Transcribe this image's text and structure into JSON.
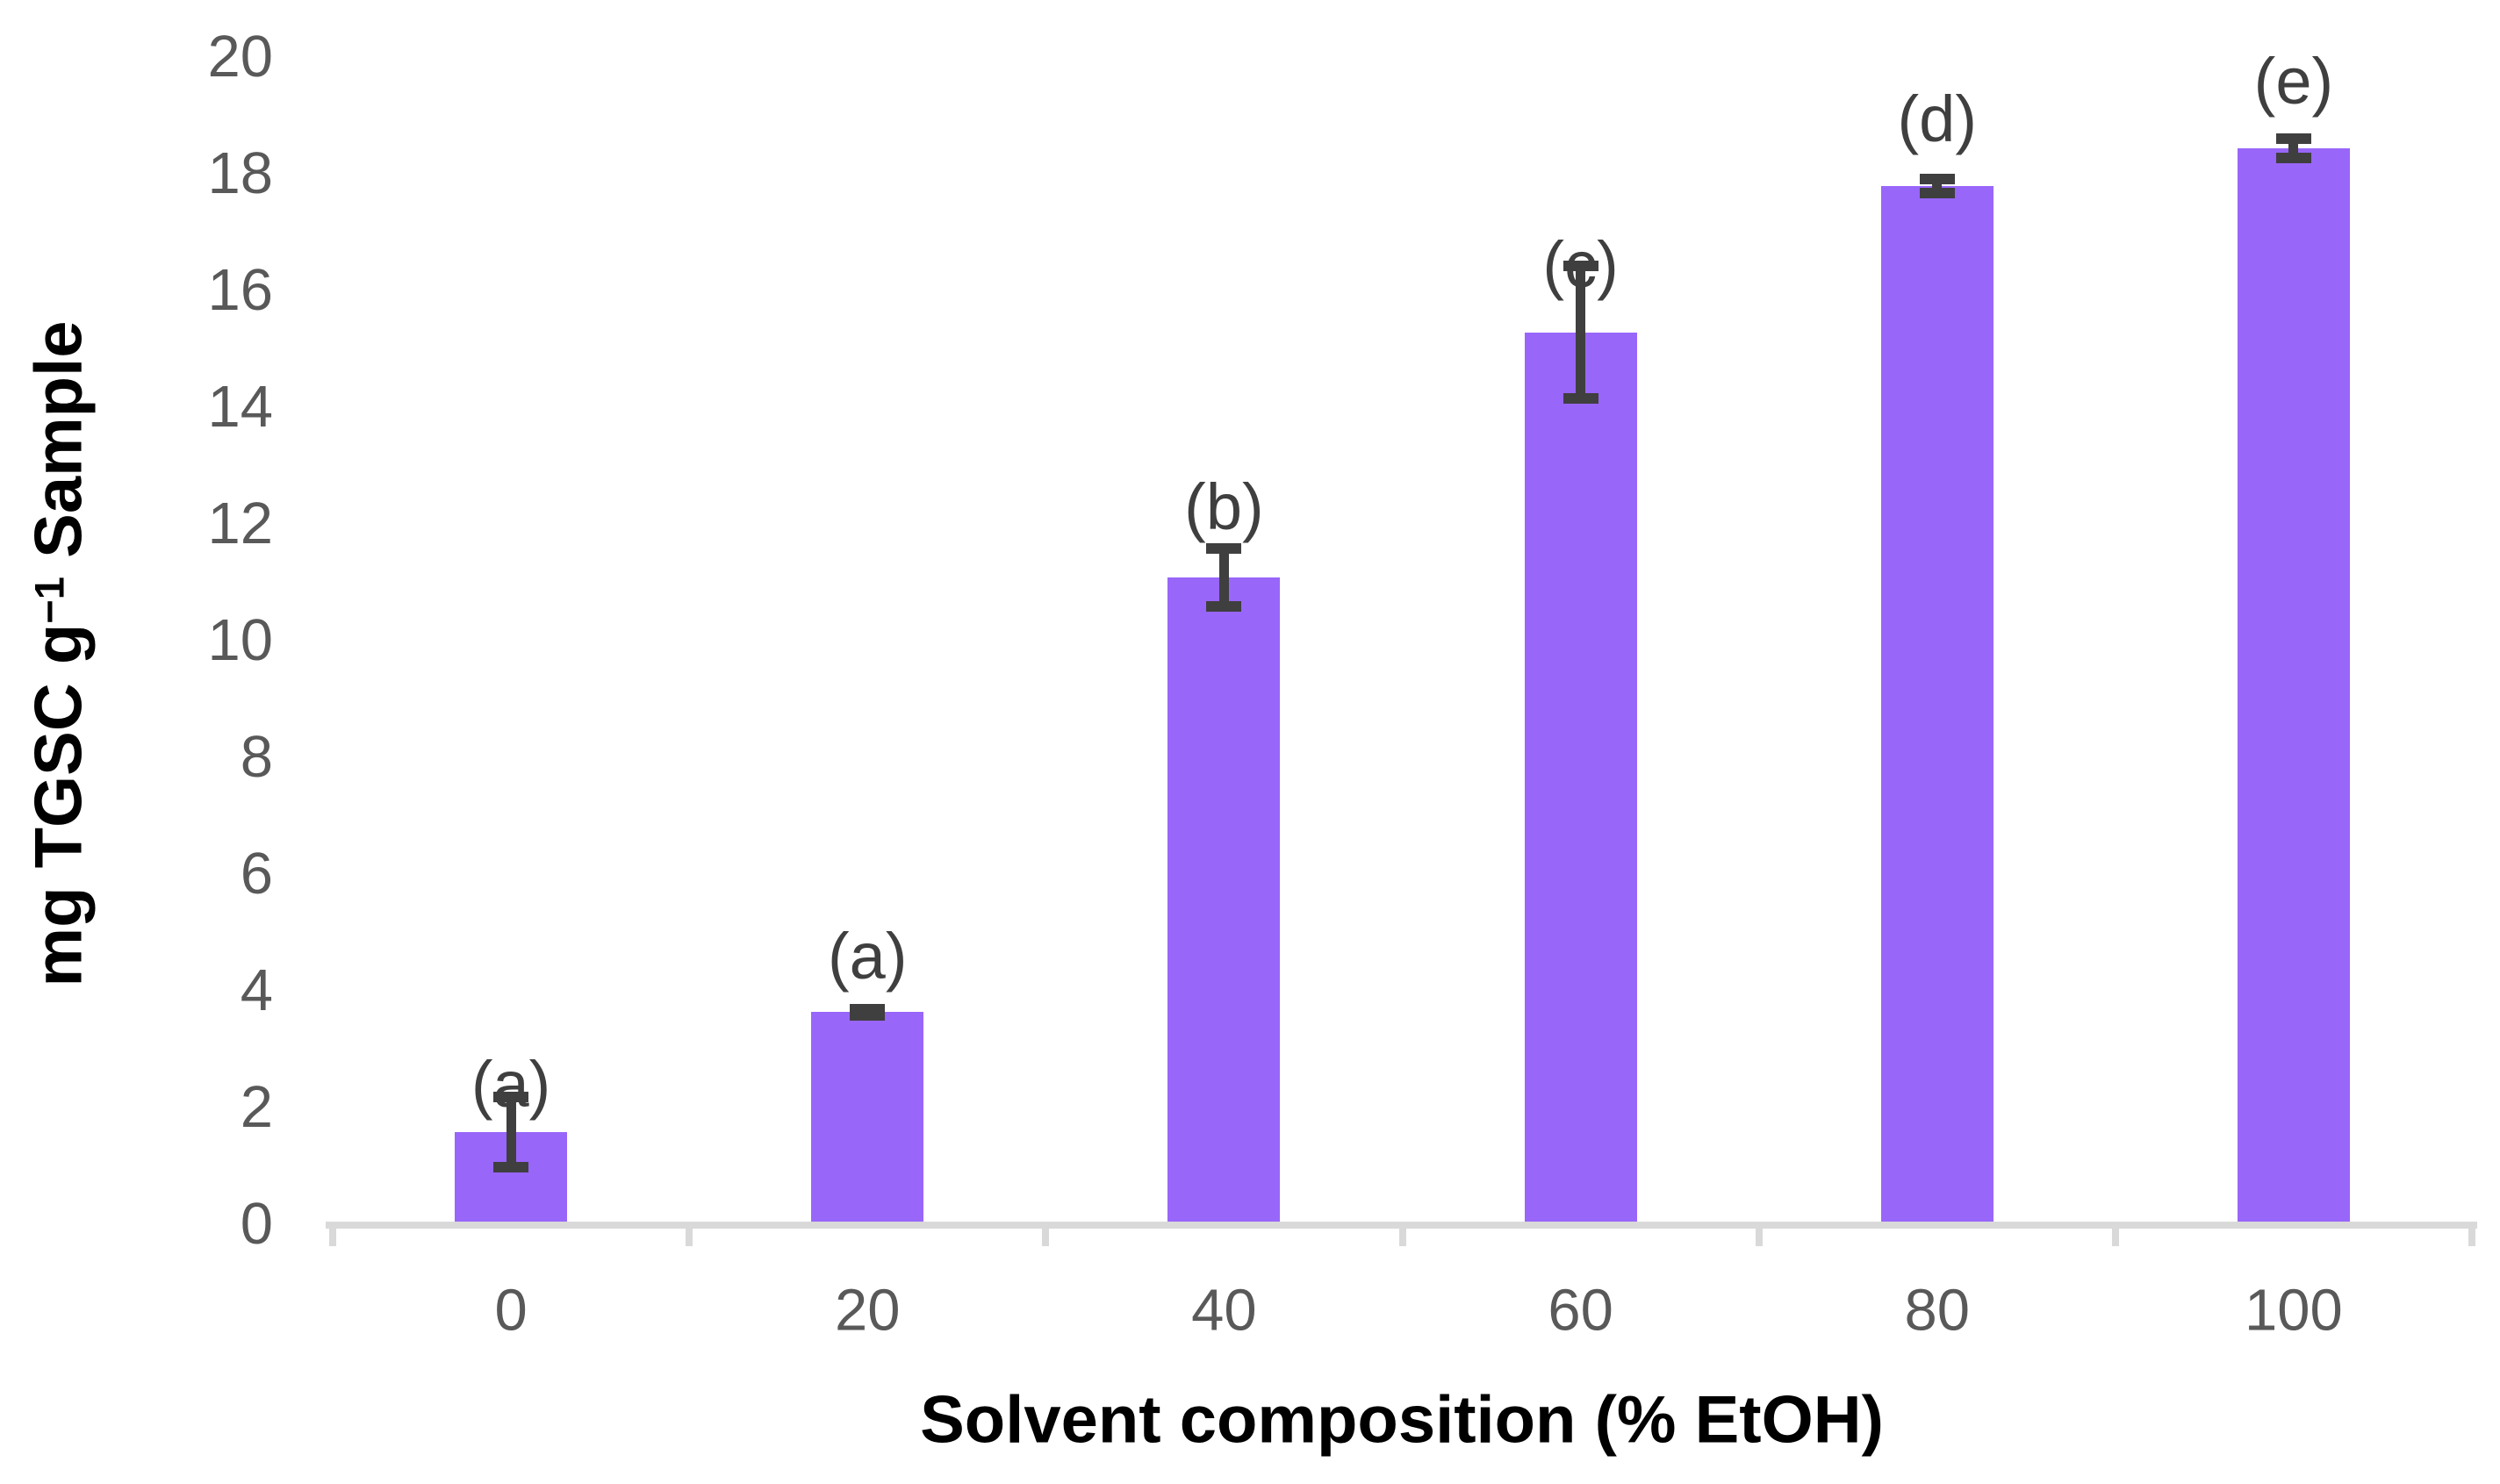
{
  "chart_data": {
    "type": "bar",
    "title": "",
    "xlabel": "Solvent composition (% EtOH)",
    "ylabel": "mg TGSC g−1 Sample",
    "ylabel_parts": {
      "pre": "mg TGSC g",
      "sup": "−1",
      "post": " Sample"
    },
    "categories": [
      "0",
      "20",
      "40",
      "60",
      "80",
      "100"
    ],
    "values": [
      1.6,
      3.65,
      11.1,
      15.3,
      17.8,
      18.45
    ],
    "errors": [
      0.6,
      0.05,
      0.5,
      1.13,
      0.12,
      0.16
    ],
    "sig_labels": [
      "(a)",
      "(a)",
      "(b)",
      "(c)",
      "(d)",
      "(e)"
    ],
    "sig_label_y": [
      2.4,
      4.6,
      12.3,
      16.45,
      18.95,
      19.6
    ],
    "ylim": [
      0,
      20
    ],
    "yticks": [
      0,
      2,
      4,
      6,
      8,
      10,
      12,
      14,
      16,
      18,
      20
    ],
    "grid": false,
    "legend": "none",
    "bar_color": "#9966FA",
    "error_color": "#3F3F3F",
    "sig_label_color": "#3F3F3F",
    "tick_label_color": "#595959",
    "axis_line_color": "#D9D9D9",
    "background_color": "#FFFFFF"
  }
}
